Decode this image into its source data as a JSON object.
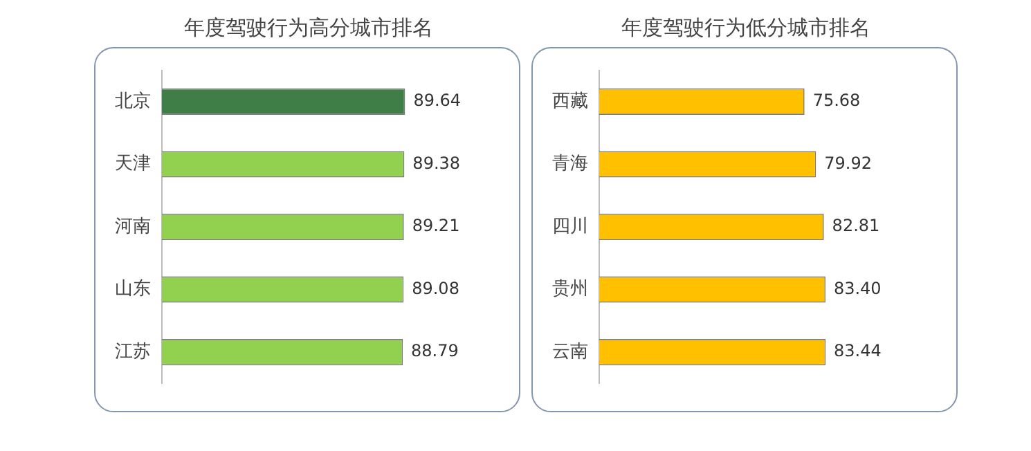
{
  "chart_data": [
    {
      "type": "bar",
      "orientation": "horizontal",
      "title": "年度驾驶行为高分城市排名",
      "categories": [
        "北京",
        "天津",
        "河南",
        "山东",
        "江苏"
      ],
      "values": [
        89.64,
        89.38,
        89.21,
        89.08,
        88.79
      ],
      "colors": [
        "#3f7f47",
        "#92d050",
        "#92d050",
        "#92d050",
        "#92d050"
      ],
      "data_labels": true,
      "tick_labels": "y",
      "grid": false,
      "legend": false
    },
    {
      "type": "bar",
      "orientation": "horizontal",
      "title": "年度驾驶行为低分城市排名",
      "categories": [
        "西藏",
        "青海",
        "四川",
        "贵州",
        "云南"
      ],
      "values": [
        75.68,
        79.92,
        82.81,
        83.4,
        83.44
      ],
      "value_labels": [
        "75.68",
        "79.92",
        "82.81",
        "83.40",
        "83.44"
      ],
      "colors": [
        "#ffc000",
        "#ffc000",
        "#ffc000",
        "#ffc000",
        "#ffc000"
      ],
      "tick_labels": "y",
      "grid": false,
      "legend": false
    }
  ]
}
